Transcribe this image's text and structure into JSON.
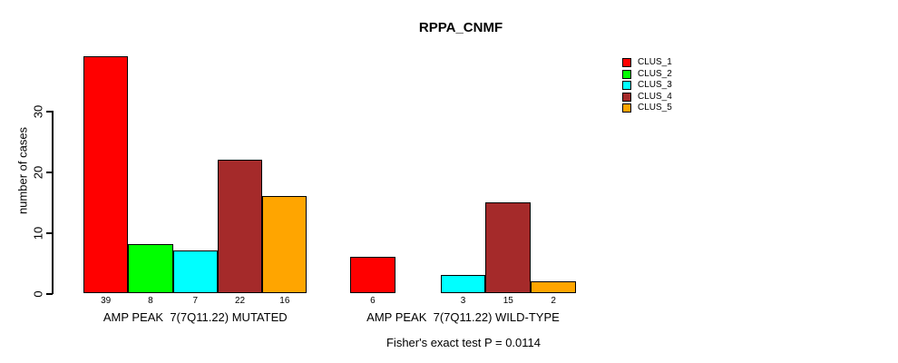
{
  "chart_data": {
    "type": "bar",
    "title": "RPPA_CNMF",
    "ylabel": "number of cases",
    "xlabel": "",
    "yticks": [
      0,
      10,
      20,
      30
    ],
    "ylim": [
      0,
      39
    ],
    "grid": false,
    "legend_position": "right",
    "categories": [
      "AMP PEAK  7(7Q11.22) MUTATED",
      "AMP PEAK  7(7Q11.22) WILD-TYPE"
    ],
    "series": [
      {
        "name": "CLUS_1",
        "color": "#FF0000",
        "values": [
          39,
          6
        ]
      },
      {
        "name": "CLUS_2",
        "color": "#00FF00",
        "values": [
          8,
          0
        ]
      },
      {
        "name": "CLUS_3",
        "color": "#00FFFF",
        "values": [
          7,
          3
        ]
      },
      {
        "name": "CLUS_4",
        "color": "#A52A2A",
        "values": [
          22,
          15
        ]
      },
      {
        "name": "CLUS_5",
        "color": "#FFA500",
        "values": [
          16,
          2
        ]
      }
    ],
    "bar_labels": [
      [
        "39",
        "8",
        "7",
        "22",
        "16"
      ],
      [
        "6",
        "",
        "3",
        "15",
        "2"
      ]
    ],
    "annotation": "Fisher's exact test P = 0.0114"
  },
  "colors": {
    "background": "#FFFFFF",
    "axis": "#000000",
    "text": "#000000"
  }
}
